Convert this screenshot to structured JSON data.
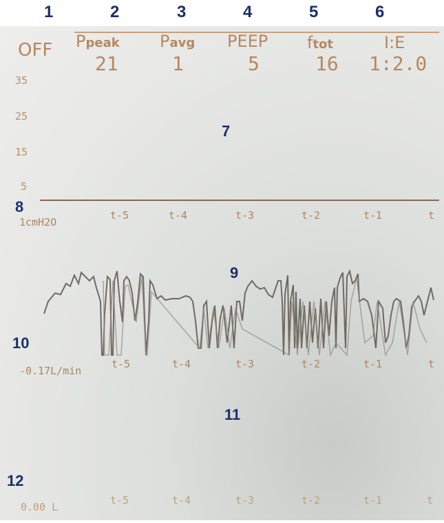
{
  "callouts": {
    "top": [
      "1",
      "2",
      "3",
      "4",
      "5",
      "6"
    ],
    "pressure_panel": "7",
    "baseline": "8",
    "flow_panel": "9",
    "flow_scale": "10",
    "volume_panel": "11",
    "volume_scale": "12"
  },
  "header": {
    "mode": "OFF",
    "ppeak": {
      "label": "P",
      "sub": "peak",
      "value": "21"
    },
    "pavg": {
      "label": "P",
      "sub": "avg",
      "value": "1"
    },
    "peep": {
      "label": "PEEP",
      "value": "5"
    },
    "ftot": {
      "label": "f",
      "sub": "tot",
      "value": "16"
    },
    "ie": {
      "label": "I:E",
      "value": "1:2.0"
    }
  },
  "pressure": {
    "y_ticks": [
      "35",
      "25",
      "15",
      "5"
    ],
    "unit": "1cmH2O",
    "time_ticks": [
      "t-5",
      "t-4",
      "t-3",
      "t-2",
      "t-1",
      "t"
    ]
  },
  "flow": {
    "scale": "-0.17L/min",
    "time_ticks": [
      "t-5",
      "t-4",
      "t-3",
      "t-2",
      "t-1",
      "t"
    ]
  },
  "volume": {
    "scale": "0.00 L",
    "time_ticks": [
      "t-5",
      "t-4",
      "t-3",
      "t-2",
      "t-1",
      "t"
    ]
  },
  "colors": {
    "text": "#b8875e",
    "trace": "#6e6a62",
    "callout": "#1b2f6b"
  }
}
